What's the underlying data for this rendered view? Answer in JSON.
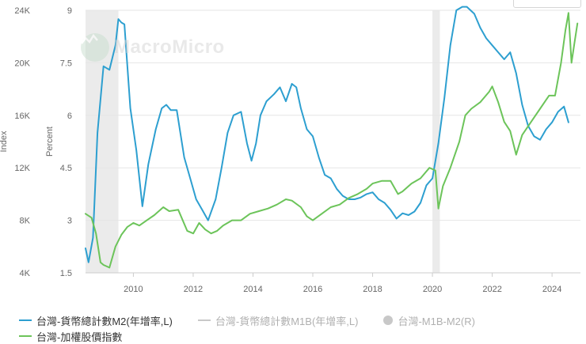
{
  "chart_data": {
    "type": "line",
    "watermark": "MacroMicro",
    "x_ticks": [
      "2010",
      "2012",
      "2014",
      "2016",
      "2018",
      "2020",
      "2022",
      "2024"
    ],
    "x_range": [
      2008.4,
      2024.95
    ],
    "left_axis": {
      "title": "Percent",
      "ticks": [
        "1.5",
        "3",
        "4.5",
        "6",
        "7.5",
        "9"
      ],
      "range": [
        1.5,
        9
      ]
    },
    "right_axis": {
      "title": "Index",
      "ticks": [
        "4K",
        "8K",
        "12K",
        "16K",
        "20K",
        "24K"
      ],
      "range": [
        4000,
        24000
      ]
    },
    "recession_bands": [
      [
        2008.4,
        2009.5
      ],
      [
        2020.0,
        2020.25
      ]
    ],
    "colors": {
      "m2": "#2d9fd0",
      "taiex": "#6cc45a",
      "m1b": "#c8c8c8",
      "m1b_m2": "#c8c8c8",
      "band": "#ebebeb",
      "grid": "#e6e6e6"
    },
    "series": [
      {
        "name": "台灣-貨幣總計數M2(年增率,L)",
        "axis": "left",
        "x": [
          2008.4,
          2008.5,
          2008.65,
          2008.8,
          2009.0,
          2009.2,
          2009.4,
          2009.5,
          2009.6,
          2009.7,
          2009.9,
          2010.1,
          2010.3,
          2010.5,
          2010.75,
          2010.95,
          2011.1,
          2011.25,
          2011.45,
          2011.7,
          2011.9,
          2012.1,
          2012.3,
          2012.5,
          2012.75,
          2012.95,
          2013.15,
          2013.35,
          2013.6,
          2013.8,
          2013.95,
          2014.1,
          2014.25,
          2014.45,
          2014.7,
          2014.9,
          2015.1,
          2015.3,
          2015.45,
          2015.6,
          2015.8,
          2016.0,
          2016.2,
          2016.4,
          2016.6,
          2016.8,
          2017.0,
          2017.2,
          2017.4,
          2017.6,
          2017.8,
          2018.0,
          2018.2,
          2018.4,
          2018.6,
          2018.8,
          2019.0,
          2019.2,
          2019.4,
          2019.6,
          2019.8,
          2020.0,
          2020.2,
          2020.4,
          2020.6,
          2020.8,
          2021.0,
          2021.15,
          2021.4,
          2021.6,
          2021.8,
          2022.0,
          2022.2,
          2022.4,
          2022.6,
          2022.8,
          2023.0,
          2023.2,
          2023.4,
          2023.6,
          2023.8,
          2024.0,
          2024.2,
          2024.4,
          2024.55
        ],
        "values": [
          2.2,
          1.8,
          2.5,
          5.5,
          7.4,
          7.3,
          8.0,
          8.75,
          8.65,
          8.6,
          6.2,
          5.0,
          3.4,
          4.6,
          5.6,
          6.2,
          6.3,
          6.15,
          6.15,
          4.8,
          4.2,
          3.6,
          3.3,
          3.0,
          3.6,
          4.5,
          5.5,
          6.0,
          6.1,
          5.2,
          4.7,
          5.2,
          6.0,
          6.4,
          6.6,
          6.8,
          6.4,
          6.9,
          6.8,
          6.2,
          5.6,
          5.4,
          4.8,
          4.3,
          4.2,
          3.9,
          3.7,
          3.6,
          3.6,
          3.65,
          3.75,
          3.8,
          3.6,
          3.5,
          3.3,
          3.05,
          3.2,
          3.15,
          3.25,
          3.5,
          4.0,
          4.2,
          5.2,
          6.5,
          8.0,
          9.0,
          9.1,
          9.1,
          8.9,
          8.5,
          8.2,
          8.0,
          7.8,
          7.6,
          7.8,
          7.2,
          6.3,
          5.7,
          5.4,
          5.3,
          5.6,
          5.8,
          6.1,
          6.25,
          5.8
        ]
      },
      {
        "name": "台灣-加權股價指數",
        "axis": "right",
        "x": [
          2008.4,
          2008.6,
          2008.75,
          2008.9,
          2009.0,
          2009.2,
          2009.4,
          2009.6,
          2009.8,
          2010.0,
          2010.2,
          2010.45,
          2010.7,
          2011.0,
          2011.2,
          2011.5,
          2011.8,
          2012.0,
          2012.2,
          2012.4,
          2012.6,
          2012.8,
          2013.0,
          2013.3,
          2013.6,
          2013.9,
          2014.2,
          2014.5,
          2014.8,
          2015.1,
          2015.3,
          2015.6,
          2015.8,
          2016.0,
          2016.3,
          2016.6,
          2016.9,
          2017.2,
          2017.5,
          2017.8,
          2018.0,
          2018.3,
          2018.6,
          2018.85,
          2019.0,
          2019.3,
          2019.6,
          2019.9,
          2020.1,
          2020.2,
          2020.35,
          2020.6,
          2020.9,
          2021.1,
          2021.3,
          2021.6,
          2021.9,
          2022.0,
          2022.2,
          2022.4,
          2022.6,
          2022.8,
          2023.0,
          2023.3,
          2023.6,
          2023.9,
          2024.1,
          2024.3,
          2024.45,
          2024.55,
          2024.65,
          2024.75,
          2024.85
        ],
        "values": [
          8500,
          8200,
          7000,
          4800,
          4600,
          4400,
          6000,
          6900,
          7500,
          7800,
          7600,
          8000,
          8400,
          9000,
          8700,
          8800,
          7200,
          7000,
          7800,
          7300,
          7000,
          7200,
          7600,
          8000,
          8000,
          8500,
          8700,
          8900,
          9200,
          9600,
          9500,
          9000,
          8300,
          8000,
          8500,
          9000,
          9200,
          9700,
          10000,
          10400,
          10800,
          11000,
          11000,
          10000,
          10200,
          10800,
          11200,
          12000,
          11800,
          8900,
          10600,
          12000,
          14000,
          16000,
          16500,
          17000,
          17800,
          18200,
          17000,
          15500,
          14800,
          13000,
          14500,
          15500,
          16500,
          17500,
          17500,
          20000,
          22500,
          23800,
          20000,
          21500,
          23000
        ]
      }
    ],
    "legend": [
      {
        "label": "台灣-貨幣總計數M2(年增率,L)",
        "style": "line",
        "active": true
      },
      {
        "label": "台灣-貨幣總計數M1B(年增率,L)",
        "style": "line",
        "active": false
      },
      {
        "label": "台灣-M1B-M2(R)",
        "style": "dot",
        "active": false
      },
      {
        "label": "台灣-加權股價指數",
        "style": "line",
        "active": true
      }
    ]
  }
}
